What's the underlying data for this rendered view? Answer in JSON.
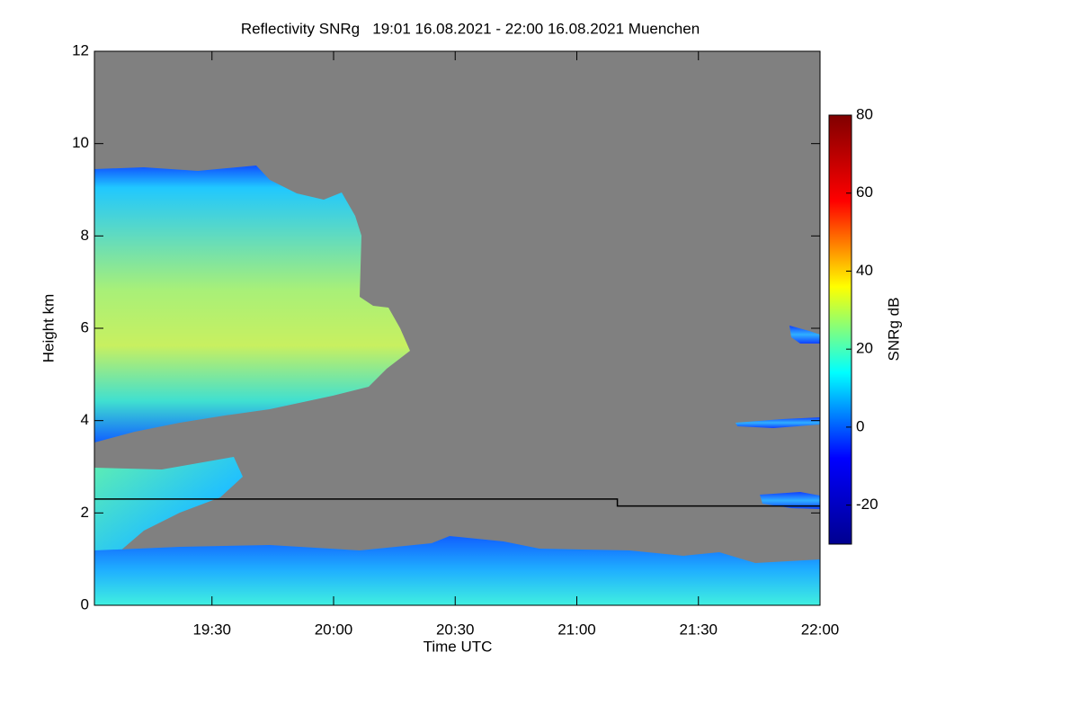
{
  "chart_data": {
    "type": "heatmap",
    "title": "Reflectivity SNRg   19:01 16.08.2021 - 22:00 16.08.2021 Muenchen",
    "xlabel": "Time UTC",
    "ylabel": "Height km",
    "xlim": [
      19.0167,
      22.0
    ],
    "xticks": [
      {
        "value": 19.5,
        "label": "19:30"
      },
      {
        "value": 20.0,
        "label": "20:00"
      },
      {
        "value": 20.5,
        "label": "20:30"
      },
      {
        "value": 21.0,
        "label": "21:00"
      },
      {
        "value": 21.5,
        "label": "21:30"
      },
      {
        "value": 22.0,
        "label": "22:00"
      }
    ],
    "ylim": [
      0,
      12
    ],
    "yticks": [
      0,
      2,
      4,
      6,
      8,
      10,
      12
    ],
    "colorbar": {
      "label": "SNRg dB",
      "lim": [
        -30,
        80
      ],
      "ticks": [
        -20,
        0,
        20,
        40,
        60,
        80
      ],
      "colors": [
        "#00008f",
        "#0000ff",
        "#00ffff",
        "#ffff00",
        "#ff0000",
        "#800000"
      ]
    },
    "line": {
      "x": [
        19.0167,
        21.1667,
        21.1667,
        22.0
      ],
      "values": [
        2.3,
        2.3,
        2.15,
        2.15
      ],
      "color": "#000000"
    }
  }
}
